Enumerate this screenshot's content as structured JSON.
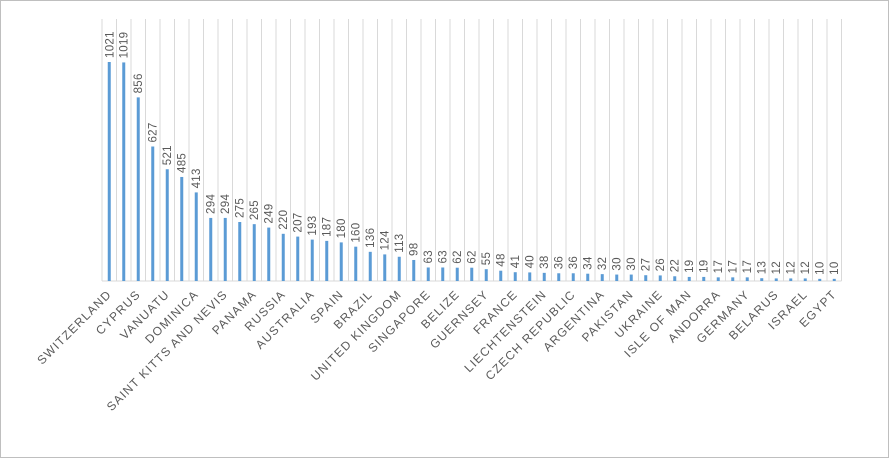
{
  "chart_data": {
    "type": "bar",
    "title": "",
    "xlabel": "",
    "ylabel": "",
    "ylim": [
      0,
      1021
    ],
    "grid": "vertical",
    "bar_color": "#5b9bd5",
    "categories": [
      "SWITZERLAND",
      "",
      "CYPRUS",
      "",
      "VANUATU",
      "",
      "DOMINICA",
      "",
      "SAINT KITTS AND NEVIS",
      "",
      "PANAMA",
      "",
      "RUSSIA",
      "",
      "AUSTRALIA",
      "",
      "SPAIN",
      "",
      "BRAZIL",
      "",
      "UNITED KINGDOM",
      "",
      "SINGAPORE",
      "",
      "BELIZE",
      "",
      "GUERNSEY",
      "",
      "FRANCE",
      "",
      "LIECHTENSTEIN",
      "",
      "CZECH REPUBLIC",
      "",
      "ARGENTINA",
      "",
      "PAKISTAN",
      "",
      "UKRAINE",
      "",
      "ISLE OF MAN",
      "",
      "ANDORRA",
      "",
      "GERMANY",
      "",
      "BELARUS",
      "",
      "ISRAEL",
      "",
      "EGYPT"
    ],
    "values": [
      1021,
      1019,
      856,
      627,
      521,
      485,
      413,
      294,
      294,
      275,
      265,
      249,
      220,
      207,
      193,
      187,
      180,
      160,
      136,
      124,
      113,
      98,
      63,
      63,
      62,
      62,
      55,
      48,
      41,
      40,
      38,
      36,
      36,
      34,
      32,
      30,
      30,
      27,
      26,
      22,
      19,
      19,
      17,
      17,
      17,
      13,
      12,
      12,
      12,
      10,
      10
    ]
  }
}
